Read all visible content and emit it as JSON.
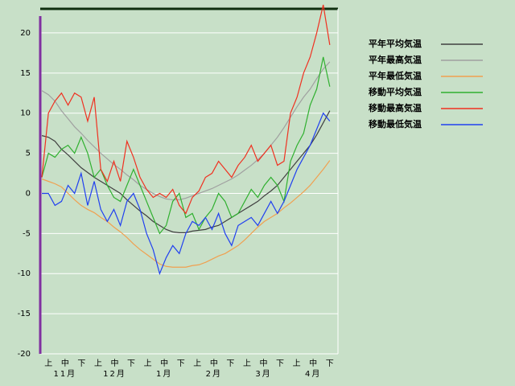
{
  "chart_data": {
    "type": "line",
    "categories": [
      "上",
      "中",
      "下",
      "上",
      "中",
      "下",
      "上",
      "中",
      "下",
      "上",
      "中",
      "下",
      "上",
      "中",
      "下",
      "上",
      "中",
      "下"
    ],
    "months": [
      "11月",
      "12月",
      "1月",
      "2月",
      "3月",
      "4月"
    ],
    "x": [
      0,
      4,
      8,
      12,
      16,
      20,
      24,
      28,
      32,
      36,
      40,
      44,
      48,
      52,
      56,
      60,
      64,
      68,
      72,
      76,
      80,
      84,
      88,
      92,
      96,
      100,
      104,
      108,
      112,
      116,
      120,
      124,
      128,
      132,
      136,
      140,
      144,
      148,
      152,
      156,
      160,
      164,
      168,
      172,
      176
    ],
    "xlim": [
      -1,
      181
    ],
    "ylim": [
      -20,
      23
    ],
    "yticks": [
      -20,
      -15,
      -10,
      -5,
      0,
      5,
      10,
      15,
      20
    ],
    "grid": true,
    "legend": "right",
    "series": [
      {
        "name": "平年平均気温",
        "color": "#404040",
        "values": [
          7.2,
          7.0,
          6.5,
          5.5,
          4.8,
          4.0,
          3.2,
          2.6,
          2.0,
          1.5,
          1.0,
          0.5,
          0.0,
          -0.8,
          -1.5,
          -2.2,
          -2.8,
          -3.5,
          -4.0,
          -4.5,
          -4.8,
          -4.9,
          -4.9,
          -4.7,
          -4.6,
          -4.5,
          -4.2,
          -4.0,
          -3.5,
          -3.0,
          -2.5,
          -2.0,
          -1.5,
          -1.0,
          -0.3,
          0.3,
          1.0,
          2.0,
          3.0,
          4.0,
          5.0,
          6.0,
          7.3,
          8.8,
          10.3
        ]
      },
      {
        "name": "平年最高気温",
        "color": "#a0a0a0",
        "values": [
          12.8,
          12.3,
          11.5,
          10.3,
          9.3,
          8.3,
          7.5,
          6.6,
          5.8,
          5.0,
          4.3,
          3.6,
          3.0,
          2.3,
          1.7,
          1.0,
          0.5,
          0.0,
          -0.4,
          -0.7,
          -0.8,
          -0.8,
          -0.6,
          -0.3,
          0.0,
          0.3,
          0.6,
          1.0,
          1.4,
          1.8,
          2.3,
          2.9,
          3.5,
          4.2,
          5.0,
          6.0,
          7.0,
          8.2,
          9.5,
          10.8,
          12.0,
          13.0,
          14.3,
          15.5,
          16.4
        ]
      },
      {
        "name": "平年最低気温",
        "color": "#f0a050",
        "values": [
          1.8,
          1.5,
          1.2,
          0.8,
          0.0,
          -0.8,
          -1.5,
          -2.0,
          -2.4,
          -3.0,
          -3.5,
          -4.2,
          -4.8,
          -5.5,
          -6.3,
          -7.0,
          -7.6,
          -8.2,
          -8.8,
          -9.1,
          -9.2,
          -9.2,
          -9.2,
          -9.0,
          -8.9,
          -8.6,
          -8.2,
          -7.8,
          -7.5,
          -7.0,
          -6.5,
          -5.8,
          -5.0,
          -4.2,
          -3.5,
          -3.0,
          -2.5,
          -1.8,
          -1.2,
          -0.5,
          0.2,
          1.0,
          2.0,
          3.0,
          4.1
        ]
      },
      {
        "name": "移動平均気温",
        "color": "#30b030",
        "values": [
          2,
          5,
          4.5,
          5.5,
          6,
          5,
          7,
          5,
          2,
          3,
          1,
          -0.5,
          -1,
          1,
          3,
          1,
          -1,
          -3,
          -5,
          -4,
          -1,
          0,
          -3,
          -2.5,
          -4.5,
          -3,
          -2,
          0,
          -1,
          -3,
          -2.5,
          -1,
          0.5,
          -0.5,
          1,
          2,
          1,
          -1,
          4,
          6,
          7.5,
          11,
          13,
          17,
          13.3
        ]
      },
      {
        "name": "移動最高気温",
        "color": "#f03020",
        "values": [
          2,
          10,
          11.5,
          12.5,
          11,
          12.5,
          12,
          9,
          12,
          3,
          1.5,
          4,
          1.5,
          6.5,
          4.5,
          2,
          0.5,
          -0.5,
          0,
          -0.5,
          0.5,
          -1.5,
          -2.5,
          -0.5,
          0.3,
          2,
          2.5,
          4,
          3,
          2,
          3.5,
          4.5,
          6,
          4,
          5,
          6,
          3.5,
          4,
          10,
          12,
          15,
          17,
          20,
          23.5,
          18.5
        ]
      },
      {
        "name": "移動最低気温",
        "color": "#2040f0",
        "values": [
          0,
          0,
          -1.5,
          -1,
          1,
          0,
          2.5,
          -1.5,
          1.5,
          -2,
          -3.5,
          -2,
          -4,
          -1,
          0,
          -2,
          -5,
          -7,
          -10,
          -8,
          -6.5,
          -7.5,
          -5,
          -3.5,
          -4,
          -3,
          -4.5,
          -2.5,
          -5,
          -6.5,
          -4,
          -3.5,
          -3,
          -4,
          -2.5,
          -1,
          -2.5,
          -1,
          1,
          3,
          4.5,
          6,
          8,
          10,
          9
        ]
      }
    ]
  }
}
